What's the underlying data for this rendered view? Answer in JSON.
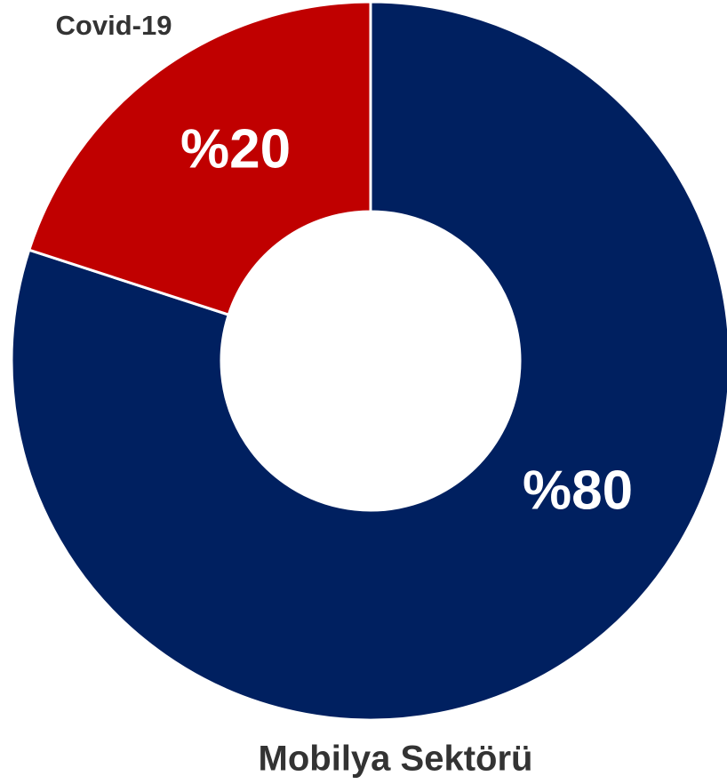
{
  "chart_data": {
    "type": "donut",
    "categories": [
      "Mobilya Sektörü",
      "Covid-19"
    ],
    "values": [
      80,
      20
    ],
    "value_labels": [
      "%80",
      "%20"
    ],
    "colors": [
      "#002060",
      "#c00000"
    ]
  }
}
